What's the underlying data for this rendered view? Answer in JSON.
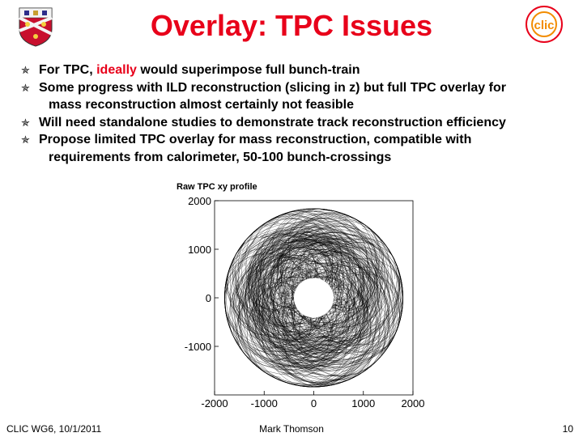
{
  "slide": {
    "title": "Overlay: TPC Issues",
    "bullets": [
      {
        "before": "For TPC, ",
        "highlight": "ideally",
        "after": " would superimpose full bunch-train"
      },
      {
        "line1": "Some progress with ILD reconstruction (slicing in z) but full TPC overlay for",
        "line2": "mass reconstruction almost certainly not feasible"
      },
      {
        "text": "Will need standalone studies to demonstrate track reconstruction efficiency"
      },
      {
        "line1": "Propose limited TPC overlay for mass reconstruction, compatible with",
        "line2": "requirements from calorimeter, 50-100 bunch-crossings"
      }
    ],
    "bullet_marker": "✯",
    "highlight_color": "#e8001a",
    "logos": {
      "left": "cambridge-crest",
      "right": "clic-logo",
      "clic_text": "clic"
    }
  },
  "chart_data": {
    "type": "scatter",
    "title": "Raw TPC xy profile",
    "xlim": [
      -2000,
      2000
    ],
    "ylim": [
      -2000,
      2000
    ],
    "xticks": [
      "-2000",
      "-1000",
      "0",
      "1000",
      "2000"
    ],
    "yticks": [
      "2000",
      "1000",
      "0",
      "-1000"
    ],
    "inner_radius": 400,
    "outer_radius": 1800
  },
  "footer": {
    "left": "CLIC WG6, 10/1/2011",
    "center": "Mark Thomson",
    "right": "10"
  }
}
